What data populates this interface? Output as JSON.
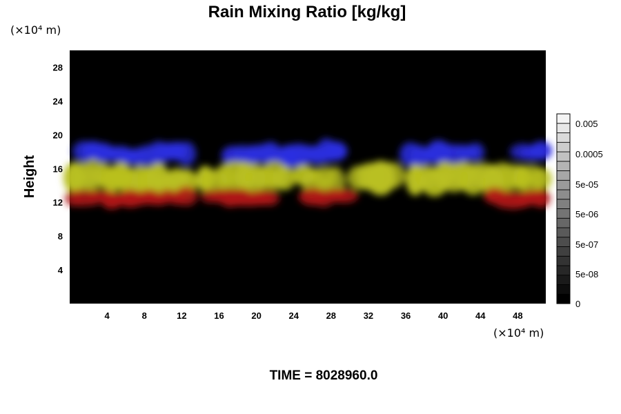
{
  "chart_data": {
    "type": "heatmap",
    "title": "Rain Mixing Ratio [kg/kg]",
    "xlabel": "",
    "ylabel": "Height",
    "x_unit": "(×10⁴ m)",
    "y_unit": "(×10⁴ m)",
    "xlim": [
      0,
      51
    ],
    "ylim": [
      0,
      30
    ],
    "xticks": [
      4,
      8,
      12,
      16,
      20,
      24,
      28,
      32,
      36,
      40,
      44,
      48
    ],
    "yticks": [
      4,
      8,
      12,
      16,
      20,
      24,
      28
    ],
    "background_color": "#000000",
    "grid": false,
    "colorbar": {
      "position": "right",
      "labels": [
        "0.005",
        "0.0005",
        "5e-05",
        "5e-06",
        "5e-07",
        "5e-08",
        "0"
      ],
      "levels": 20,
      "color_low": "#000000",
      "color_high": "#f4f4f4"
    },
    "cloud_layers": [
      {
        "name": "blue",
        "color": "#2b2ee0",
        "height_range": [
          16.5,
          19.0
        ],
        "segments": [
          [
            1,
            13
          ],
          [
            17,
            29
          ],
          [
            36,
            44
          ],
          [
            48,
            51
          ]
        ]
      },
      {
        "name": "yellow",
        "color": "#b9c020",
        "height_range": [
          13.0,
          16.5
        ],
        "segments": [
          [
            0,
            13
          ],
          [
            14,
            23.5
          ],
          [
            24.5,
            29
          ],
          [
            30.5,
            35
          ],
          [
            36.5,
            51
          ]
        ]
      },
      {
        "name": "red",
        "color": "#b01818",
        "height_range": [
          11.5,
          13.5
        ],
        "segments": [
          [
            0,
            13
          ],
          [
            14.5,
            22
          ],
          [
            25.5,
            30
          ],
          [
            45,
            51
          ]
        ]
      }
    ],
    "footer_text": "TIME = 8028960.0"
  }
}
